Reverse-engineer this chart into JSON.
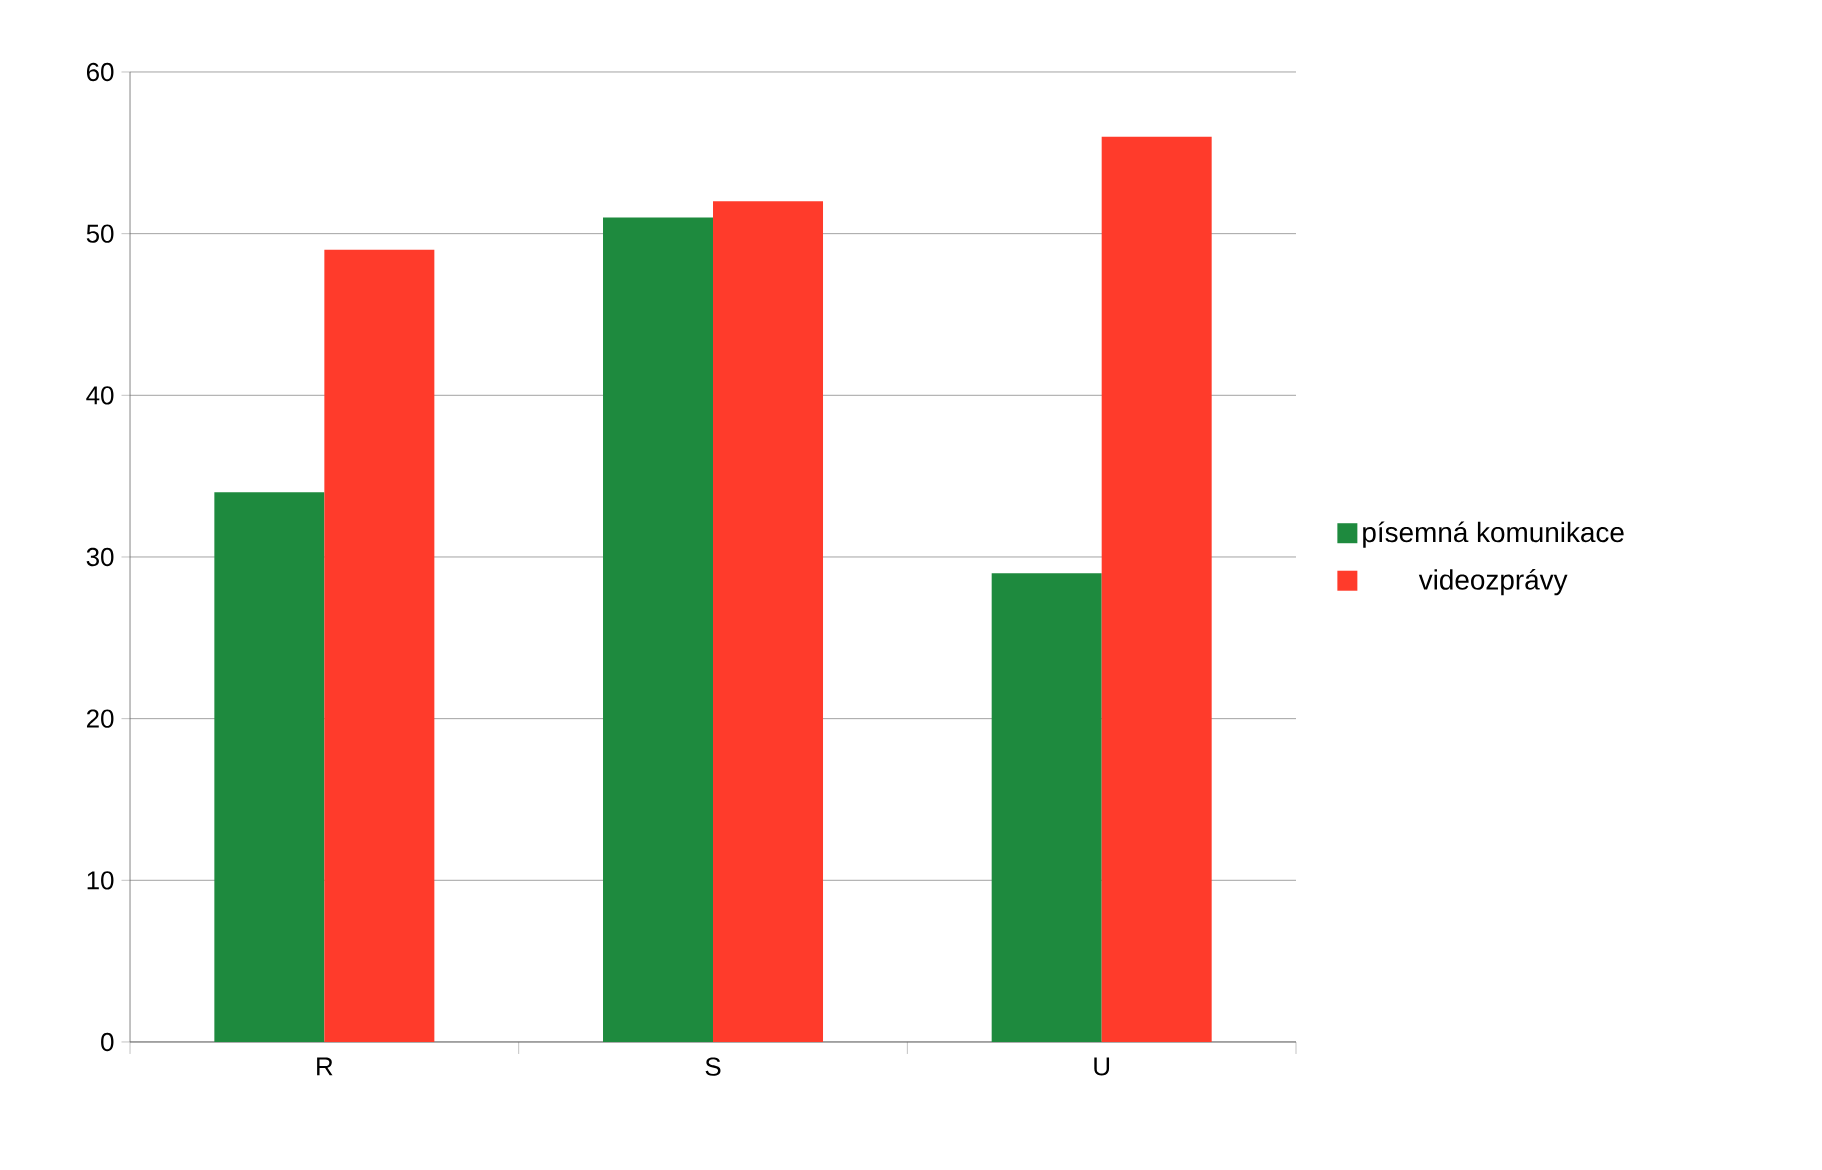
{
  "chart_data": {
    "type": "bar",
    "categories": [
      "R",
      "S",
      "U"
    ],
    "series": [
      {
        "name": "písemná komunikace",
        "color": "#1e8a3e",
        "values": [
          34,
          51,
          29
        ]
      },
      {
        "name": "videozprávy",
        "color": "#ff3b2b",
        "values": [
          49,
          52,
          56
        ]
      }
    ],
    "ylim": [
      0,
      60
    ],
    "yticks": [
      0,
      10,
      20,
      30,
      40,
      50,
      60
    ],
    "grid": "y",
    "legend": "right"
  }
}
